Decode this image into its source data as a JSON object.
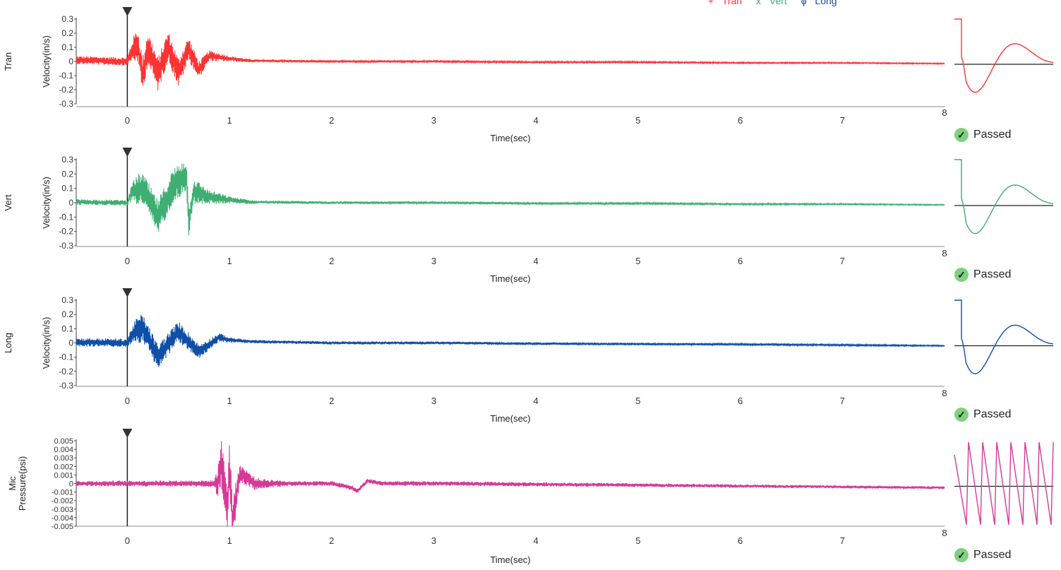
{
  "legend": [
    {
      "symbol": "+",
      "label": "Tran",
      "color": "#ff3333"
    },
    {
      "symbol": "x",
      "label": "Vert",
      "color": "#3fae72"
    },
    {
      "symbol": "ϕ",
      "label": "Long",
      "color": "#0f4fa8"
    }
  ],
  "status_label": "Passed",
  "chart_data": [
    {
      "type": "line",
      "channel": "Tran",
      "ylabel": "Velocity(in/s)",
      "xlabel": "Time(sec)",
      "color": "#ff3333",
      "xlim": [
        -0.5,
        8
      ],
      "ylim": [
        -0.3,
        0.3
      ],
      "yticks": [
        "0.3",
        "0.2",
        "0.1",
        "0",
        "-0.1",
        "-0.2",
        "-0.3"
      ],
      "xticks": [
        "0",
        "1",
        "2",
        "3",
        "4",
        "5",
        "6",
        "7",
        "8"
      ],
      "trigger_time": 0,
      "x": [
        -0.5,
        0,
        0.05,
        0.1,
        0.15,
        0.2,
        0.3,
        0.4,
        0.5,
        0.6,
        0.7,
        0.8,
        1.0,
        1.2,
        2,
        3,
        4,
        5,
        6,
        7,
        8
      ],
      "y": [
        0.01,
        0.0,
        0.08,
        0.12,
        -0.1,
        0.1,
        -0.09,
        0.11,
        -0.08,
        0.09,
        -0.06,
        0.04,
        0.02,
        0.005,
        0.0,
        0.0,
        -0.005,
        -0.005,
        -0.01,
        -0.01,
        -0.015
      ],
      "envelope": [
        [
          0,
          0.03
        ],
        [
          0.1,
          0.13
        ],
        [
          0.3,
          0.12
        ],
        [
          0.55,
          0.1
        ],
        [
          0.8,
          0.04
        ],
        [
          1.0,
          0.02
        ],
        [
          1.3,
          0.008
        ],
        [
          8,
          0.004
        ]
      ],
      "status": "Passed"
    },
    {
      "type": "line",
      "channel": "Vert",
      "ylabel": "Velocity(in/s)",
      "xlabel": "Time(sec)",
      "color": "#3fae72",
      "xlim": [
        -0.5,
        8
      ],
      "ylim": [
        -0.3,
        0.3
      ],
      "yticks": [
        "0.3",
        "0.2",
        "0.1",
        "0",
        "-0.1",
        "-0.2",
        "-0.3"
      ],
      "xticks": [
        "0",
        "1",
        "2",
        "3",
        "4",
        "5",
        "6",
        "7",
        "8"
      ],
      "trigger_time": 0,
      "x": [
        -0.5,
        0,
        0.05,
        0.15,
        0.3,
        0.45,
        0.58,
        0.6,
        0.65,
        0.8,
        1.0,
        1.2,
        2,
        3,
        4,
        5,
        6,
        7,
        8
      ],
      "y": [
        0.005,
        0.0,
        0.08,
        0.1,
        -0.1,
        0.12,
        0.2,
        -0.14,
        0.08,
        0.04,
        0.02,
        0.005,
        0.0,
        0.0,
        -0.005,
        -0.005,
        -0.01,
        -0.01,
        -0.015
      ],
      "envelope": [
        [
          0,
          0.02
        ],
        [
          0.1,
          0.11
        ],
        [
          0.3,
          0.12
        ],
        [
          0.55,
          0.12
        ],
        [
          0.8,
          0.05
        ],
        [
          1.0,
          0.025
        ],
        [
          1.3,
          0.01
        ],
        [
          8,
          0.004
        ]
      ],
      "status": "Passed"
    },
    {
      "type": "line",
      "channel": "Long",
      "ylabel": "Velocity(in/s)",
      "xlabel": "Time(sec)",
      "color": "#0f4fa8",
      "xlim": [
        -0.5,
        8
      ],
      "ylim": [
        -0.3,
        0.3
      ],
      "yticks": [
        "0.3",
        "0.2",
        "0.1",
        "0",
        "-0.1",
        "-0.2",
        "-0.3"
      ],
      "xticks": [
        "0",
        "1",
        "2",
        "3",
        "4",
        "5",
        "6",
        "7",
        "8"
      ],
      "trigger_time": 0,
      "x": [
        -0.5,
        0,
        0.05,
        0.15,
        0.3,
        0.5,
        0.7,
        0.9,
        1.0,
        1.2,
        2,
        3,
        4,
        5,
        6,
        7,
        8
      ],
      "y": [
        0.005,
        0.0,
        0.06,
        0.11,
        -0.1,
        0.08,
        -0.06,
        0.04,
        0.02,
        0.01,
        0.0,
        0.0,
        -0.005,
        -0.008,
        -0.01,
        -0.015,
        -0.02
      ],
      "envelope": [
        [
          0,
          0.03
        ],
        [
          0.1,
          0.1
        ],
        [
          0.3,
          0.09
        ],
        [
          0.55,
          0.07
        ],
        [
          0.8,
          0.04
        ],
        [
          1.0,
          0.02
        ],
        [
          1.2,
          0.012
        ],
        [
          8,
          0.005
        ]
      ],
      "status": "Passed"
    },
    {
      "type": "line",
      "channel": "Mic",
      "ylabel": "Pressure(psi)",
      "xlabel": "Time(sec)",
      "color": "#d63a98",
      "xlim": [
        -0.5,
        8
      ],
      "ylim": [
        -0.005,
        0.005
      ],
      "yticks": [
        "0.005",
        "0.004",
        "0.003",
        "0.002",
        "0.001",
        "0",
        "-0.001",
        "-0.002",
        "-0.003",
        "-0.004",
        "-0.005"
      ],
      "xticks": [
        "0",
        "1",
        "2",
        "3",
        "4",
        "5",
        "6",
        "7",
        "8"
      ],
      "trigger_time": 0,
      "x": [
        -0.5,
        0.88,
        0.92,
        0.98,
        1.0,
        1.03,
        1.1,
        1.25,
        1.5,
        2.0,
        2.2,
        2.25,
        2.35,
        2.5,
        3,
        4,
        5,
        6,
        7,
        8
      ],
      "y": [
        0.0,
        0.0,
        0.0025,
        -0.003,
        0.002,
        -0.0045,
        0.0012,
        0.0,
        0.0,
        0.0,
        -0.0005,
        -0.0009,
        0.0003,
        0.0,
        0.0,
        -0.0001,
        -0.0002,
        -0.0003,
        -0.0004,
        -0.0005
      ],
      "envelope": [
        [
          -0.5,
          0.0003
        ],
        [
          0.85,
          0.0004
        ],
        [
          0.9,
          0.0025
        ],
        [
          1.0,
          0.0035
        ],
        [
          1.1,
          0.0012
        ],
        [
          1.3,
          0.0006
        ],
        [
          1.6,
          0.0003
        ],
        [
          8,
          0.00015
        ]
      ],
      "status": "Passed"
    }
  ]
}
